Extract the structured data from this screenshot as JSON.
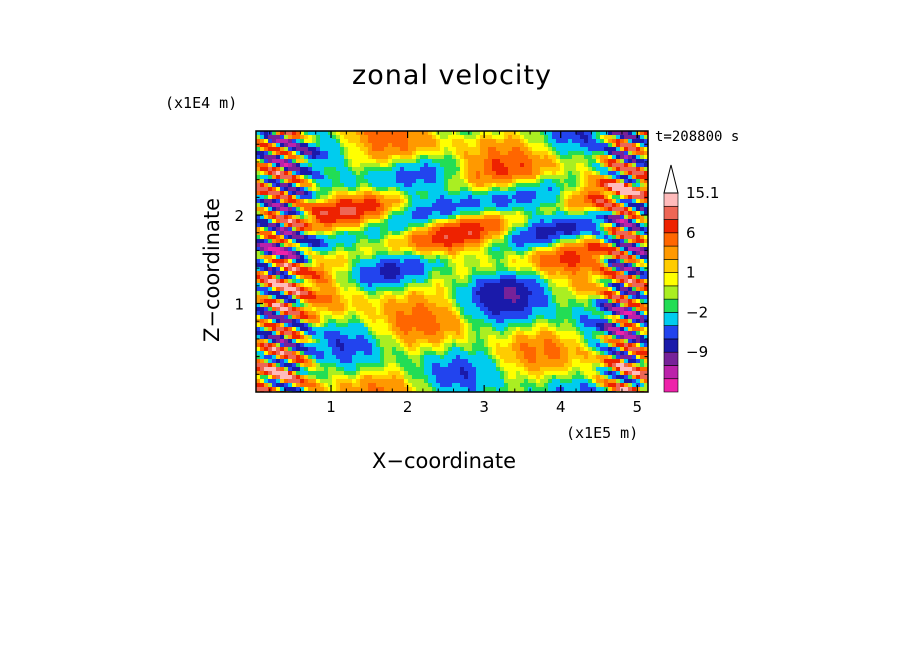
{
  "chart_data": {
    "type": "heatmap",
    "title": "zonal velocity",
    "xlabel": "X−coordinate",
    "ylabel": "Z−coordinate",
    "x_unit": "(x1E5 m)",
    "y_unit": "(x1E4 m)",
    "time_label": "t=208800 s",
    "xlim": [
      0.02,
      5.14
    ],
    "ylim": [
      0.0,
      2.95
    ],
    "x_ticks": [
      1,
      2,
      3,
      4,
      5
    ],
    "y_ticks": [
      1,
      2
    ],
    "colorbar": {
      "levels": [
        -15,
        -12,
        -9,
        -6,
        -4,
        -2,
        -1,
        0,
        1,
        2,
        4,
        6,
        9,
        12,
        15.1
      ],
      "colors": [
        "#ee22aa",
        "#bb22aa",
        "#772299",
        "#1a1aaa",
        "#2244ee",
        "#00ccee",
        "#22dd55",
        "#aaee22",
        "#ffff00",
        "#ffcc00",
        "#ff9900",
        "#ff6600",
        "#ee2200",
        "#ee6655",
        "#ffbbbb"
      ],
      "labels": [
        "15.1",
        "6",
        "1",
        "−2",
        "−9"
      ],
      "label_values": [
        15.1,
        6,
        1,
        -2,
        -9
      ]
    }
  }
}
